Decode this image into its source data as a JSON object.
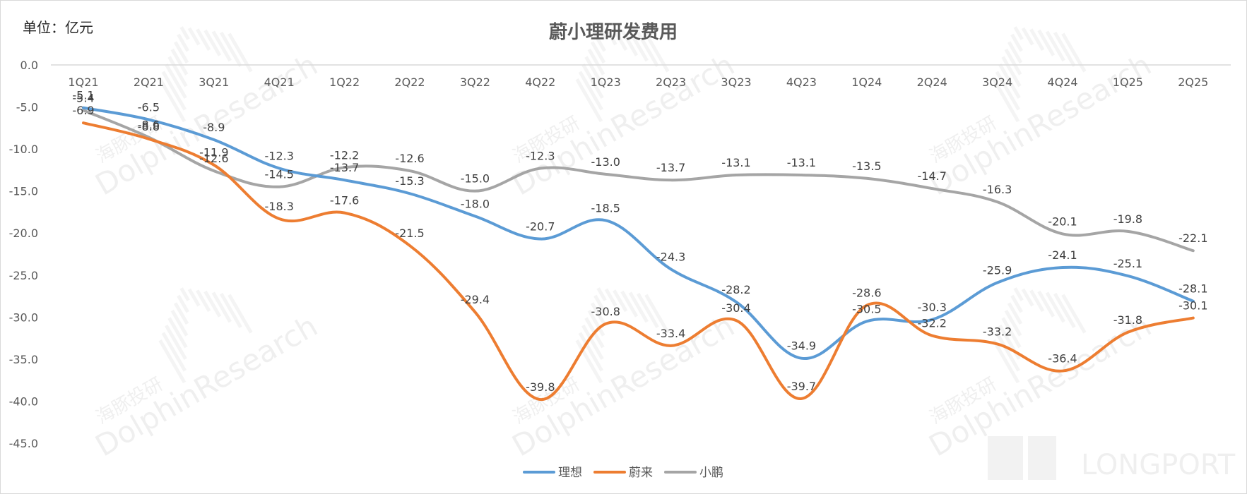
{
  "chart_data": {
    "type": "line",
    "title": "蔚小理研发费用",
    "unit_label": "单位：亿元",
    "categories": [
      "1Q21",
      "2Q21",
      "3Q21",
      "4Q21",
      "1Q22",
      "2Q22",
      "3Q22",
      "4Q22",
      "1Q23",
      "2Q23",
      "3Q23",
      "4Q23",
      "1Q24",
      "2Q24",
      "3Q24",
      "4Q24",
      "1Q25",
      "2Q25"
    ],
    "ylim": [
      -45,
      0
    ],
    "yticks": [
      0,
      -5,
      -10,
      -15,
      -20,
      -25,
      -30,
      -35,
      -40,
      -45
    ],
    "ytick_labels": [
      "0.0",
      "-5.0",
      "-10.0",
      "-15.0",
      "-20.0",
      "-25.0",
      "-30.0",
      "-35.0",
      "-40.0",
      "-45.0"
    ],
    "series": [
      {
        "name": "理想",
        "color": "#5B9BD5",
        "values": [
          -5.1,
          -6.5,
          -8.9,
          -12.3,
          -13.7,
          -15.3,
          -18.0,
          -20.7,
          -18.5,
          -24.3,
          -28.2,
          -34.9,
          -30.5,
          -30.3,
          -25.9,
          -24.1,
          -25.1,
          -28.1
        ]
      },
      {
        "name": "蔚来",
        "color": "#ED7D31",
        "values": [
          -6.9,
          -8.8,
          -11.9,
          -18.3,
          -17.6,
          -21.5,
          -29.4,
          -39.8,
          -30.8,
          -33.4,
          -30.4,
          -39.7,
          -28.6,
          -32.2,
          -33.2,
          -36.4,
          -31.8,
          -30.1
        ]
      },
      {
        "name": "小鹏",
        "color": "#A5A5A5",
        "values": [
          -5.4,
          -8.6,
          -12.6,
          -14.5,
          -12.2,
          -12.6,
          -15.0,
          -12.3,
          -13.0,
          -13.7,
          -13.1,
          -13.1,
          -13.5,
          -14.7,
          -16.3,
          -20.1,
          -19.8,
          -22.1
        ]
      }
    ],
    "legend_position": "bottom-center",
    "grid": false
  },
  "watermark": {
    "cn": "海豚投研",
    "en": "DolphinResearch",
    "brand": "LONGPORT"
  }
}
